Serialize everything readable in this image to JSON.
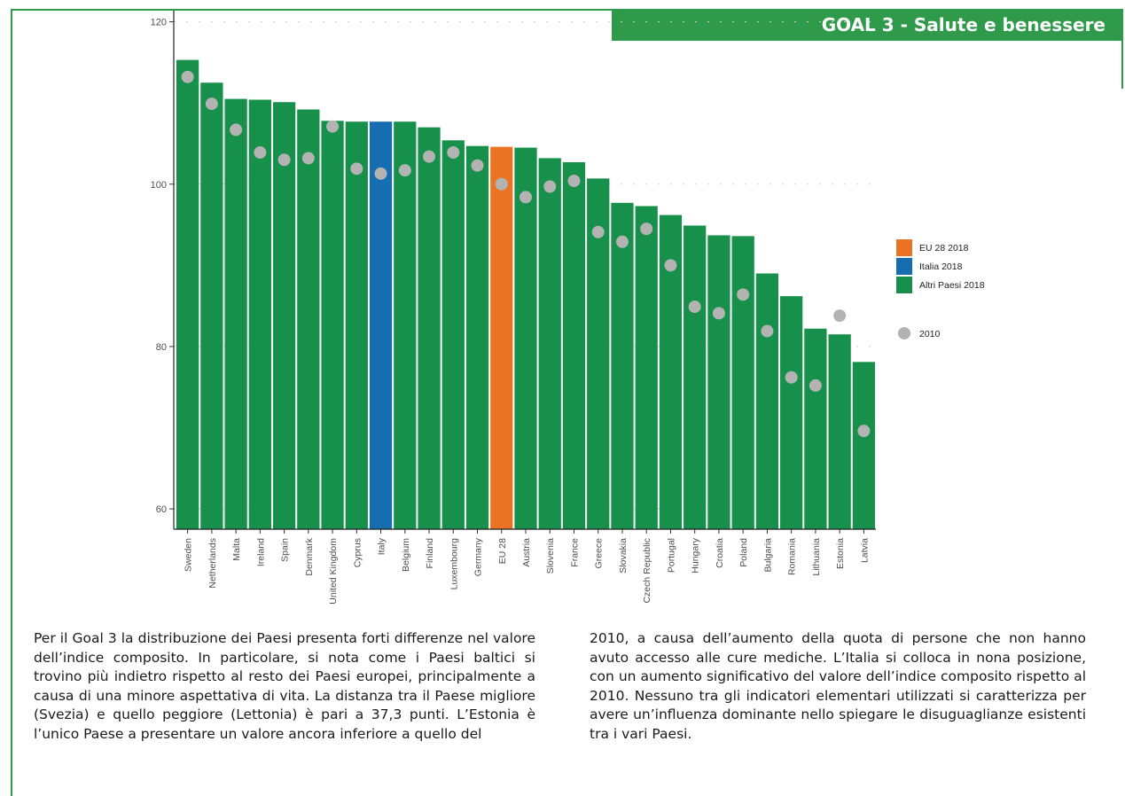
{
  "header": {
    "goal_title": "GOAL 3 - Salute e benessere"
  },
  "colors": {
    "eu": "#ea7424",
    "italy": "#166eb0",
    "others": "#16904a",
    "dot_2010": "#b3b3b3",
    "frame": "#2f9a49"
  },
  "chart_data": {
    "type": "bar",
    "categories": [
      "Sweden",
      "Netherlands",
      "Malta",
      "Ireland",
      "Spain",
      "Denmark",
      "United Kingdom",
      "Cyprus",
      "Italy",
      "Belgium",
      "Finland",
      "Luxembourg",
      "Germany",
      "EU 28",
      "Austria",
      "Slovenia",
      "France",
      "Greece",
      "Slovakia",
      "Czech Republic",
      "Portugal",
      "Hungary",
      "Croatia",
      "Poland",
      "Bulgaria",
      "Romania",
      "Lithuania",
      "Estonia",
      "Latvia"
    ],
    "series": [
      {
        "name": "2018",
        "values": [
          115.3,
          112.5,
          110.5,
          110.4,
          110.1,
          109.2,
          107.8,
          107.7,
          107.7,
          107.7,
          107.0,
          105.4,
          104.7,
          104.6,
          104.5,
          103.2,
          102.7,
          100.7,
          97.7,
          97.3,
          96.2,
          94.9,
          93.7,
          93.6,
          89.0,
          86.2,
          82.2,
          81.5,
          78.1
        ]
      },
      {
        "name": "2010",
        "values": [
          113.2,
          109.9,
          106.7,
          103.9,
          103.0,
          103.2,
          107.1,
          101.9,
          101.3,
          101.7,
          103.4,
          103.9,
          102.3,
          100.0,
          98.4,
          99.7,
          100.4,
          94.1,
          92.9,
          94.5,
          90.0,
          84.9,
          84.1,
          86.4,
          81.9,
          76.2,
          75.2,
          83.8,
          69.6
        ]
      }
    ],
    "highlight": {
      "EU 28": "eu",
      "Italy": "italy"
    },
    "legend": {
      "position": "right",
      "items": [
        {
          "label": "EU 28 2018",
          "color_key": "eu"
        },
        {
          "label": "Italia 2018",
          "color_key": "italy"
        },
        {
          "label": "Altri Paesi 2018",
          "color_key": "others"
        },
        {
          "label": "2010",
          "color_key": "dot_2010",
          "shape": "circle"
        }
      ]
    },
    "yticks": [
      60,
      80,
      100,
      120
    ],
    "ylim": [
      57.5,
      120.5
    ],
    "grid": "y-dashed"
  },
  "body_text": {
    "col1": "Per il Goal 3 la distribuzione dei Paesi presenta forti differenze nel valore dell’indice composito. In particolare, si nota come i Paesi baltici si trovino più indietro rispetto al resto dei Paesi europei, principalmente a causa di una minore aspettativa di vita. La distanza tra il Paese migliore (Svezia) e quello peggiore (Lettonia) è pari a 37,3 punti. L’Estonia è l’unico Paese a presentare un valore ancora inferiore a quello del",
    "col2": "2010, a causa dell’aumento della quota di persone che non hanno avuto accesso alle cure mediche. L’Italia si colloca in nona posizione, con un aumento significativo del valore dell’indice composito rispetto al 2010. Nessuno tra gli indicatori elementari utilizzati si caratterizza per avere un’influenza dominante nello spiegare le disuguaglianze esistenti tra i vari Paesi."
  }
}
